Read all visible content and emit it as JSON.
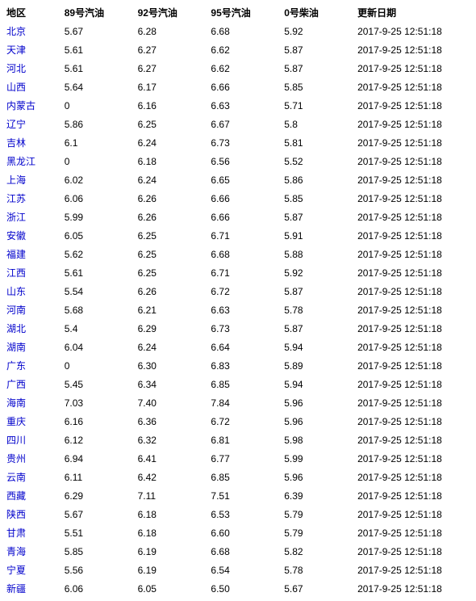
{
  "table": {
    "headers": {
      "region": "地区",
      "g89": "89号汽油",
      "g92": "92号汽油",
      "g95": "95号汽油",
      "d0": "0号柴油",
      "update": "更新日期"
    },
    "rows": [
      {
        "region": "北京",
        "g89": "5.67",
        "g92": "6.28",
        "g95": "6.68",
        "d0": "5.92",
        "update": "2017-9-25 12:51:18"
      },
      {
        "region": "天津",
        "g89": "5.61",
        "g92": "6.27",
        "g95": "6.62",
        "d0": "5.87",
        "update": "2017-9-25 12:51:18"
      },
      {
        "region": "河北",
        "g89": "5.61",
        "g92": "6.27",
        "g95": "6.62",
        "d0": "5.87",
        "update": "2017-9-25 12:51:18"
      },
      {
        "region": "山西",
        "g89": "5.64",
        "g92": "6.17",
        "g95": "6.66",
        "d0": "5.85",
        "update": "2017-9-25 12:51:18"
      },
      {
        "region": "内蒙古",
        "g89": "0",
        "g92": "6.16",
        "g95": "6.63",
        "d0": "5.71",
        "update": "2017-9-25 12:51:18"
      },
      {
        "region": "辽宁",
        "g89": "5.86",
        "g92": "6.25",
        "g95": "6.67",
        "d0": "5.8",
        "update": "2017-9-25 12:51:18"
      },
      {
        "region": "吉林",
        "g89": "6.1",
        "g92": "6.24",
        "g95": "6.73",
        "d0": "5.81",
        "update": "2017-9-25 12:51:18"
      },
      {
        "region": "黑龙江",
        "g89": "0",
        "g92": "6.18",
        "g95": "6.56",
        "d0": "5.52",
        "update": "2017-9-25 12:51:18"
      },
      {
        "region": "上海",
        "g89": "6.02",
        "g92": "6.24",
        "g95": "6.65",
        "d0": "5.86",
        "update": "2017-9-25 12:51:18"
      },
      {
        "region": "江苏",
        "g89": "6.06",
        "g92": "6.26",
        "g95": "6.66",
        "d0": "5.85",
        "update": "2017-9-25 12:51:18"
      },
      {
        "region": "浙江",
        "g89": "5.99",
        "g92": "6.26",
        "g95": "6.66",
        "d0": "5.87",
        "update": "2017-9-25 12:51:18"
      },
      {
        "region": "安徽",
        "g89": "6.05",
        "g92": "6.25",
        "g95": "6.71",
        "d0": "5.91",
        "update": "2017-9-25 12:51:18"
      },
      {
        "region": "福建",
        "g89": "5.62",
        "g92": "6.25",
        "g95": "6.68",
        "d0": "5.88",
        "update": "2017-9-25 12:51:18"
      },
      {
        "region": "江西",
        "g89": "5.61",
        "g92": "6.25",
        "g95": "6.71",
        "d0": "5.92",
        "update": "2017-9-25 12:51:18"
      },
      {
        "region": "山东",
        "g89": "5.54",
        "g92": "6.26",
        "g95": "6.72",
        "d0": "5.87",
        "update": "2017-9-25 12:51:18"
      },
      {
        "region": "河南",
        "g89": "5.68",
        "g92": "6.21",
        "g95": "6.63",
        "d0": "5.78",
        "update": "2017-9-25 12:51:18"
      },
      {
        "region": "湖北",
        "g89": "5.4",
        "g92": "6.29",
        "g95": "6.73",
        "d0": "5.87",
        "update": "2017-9-25 12:51:18"
      },
      {
        "region": "湖南",
        "g89": "6.04",
        "g92": "6.24",
        "g95": "6.64",
        "d0": "5.94",
        "update": "2017-9-25 12:51:18"
      },
      {
        "region": "广东",
        "g89": "0",
        "g92": "6.30",
        "g95": "6.83",
        "d0": "5.89",
        "update": "2017-9-25 12:51:18"
      },
      {
        "region": "广西",
        "g89": "5.45",
        "g92": "6.34",
        "g95": "6.85",
        "d0": "5.94",
        "update": "2017-9-25 12:51:18"
      },
      {
        "region": "海南",
        "g89": "7.03",
        "g92": "7.40",
        "g95": "7.84",
        "d0": "5.96",
        "update": "2017-9-25 12:51:18"
      },
      {
        "region": "重庆",
        "g89": "6.16",
        "g92": "6.36",
        "g95": "6.72",
        "d0": "5.96",
        "update": "2017-9-25 12:51:18"
      },
      {
        "region": "四川",
        "g89": "6.12",
        "g92": "6.32",
        "g95": "6.81",
        "d0": "5.98",
        "update": "2017-9-25 12:51:18"
      },
      {
        "region": "贵州",
        "g89": "6.94",
        "g92": "6.41",
        "g95": "6.77",
        "d0": "5.99",
        "update": "2017-9-25 12:51:18"
      },
      {
        "region": "云南",
        "g89": "6.11",
        "g92": "6.42",
        "g95": "6.85",
        "d0": "5.96",
        "update": "2017-9-25 12:51:18"
      },
      {
        "region": "西藏",
        "g89": "6.29",
        "g92": "7.11",
        "g95": "7.51",
        "d0": "6.39",
        "update": "2017-9-25 12:51:18"
      },
      {
        "region": "陕西",
        "g89": "5.67",
        "g92": "6.18",
        "g95": "6.53",
        "d0": "5.79",
        "update": "2017-9-25 12:51:18"
      },
      {
        "region": "甘肃",
        "g89": "5.51",
        "g92": "6.18",
        "g95": "6.60",
        "d0": "5.79",
        "update": "2017-9-25 12:51:18"
      },
      {
        "region": "青海",
        "g89": "5.85",
        "g92": "6.19",
        "g95": "6.68",
        "d0": "5.82",
        "update": "2017-9-25 12:51:18"
      },
      {
        "region": "宁夏",
        "g89": "5.56",
        "g92": "6.19",
        "g95": "6.54",
        "d0": "5.78",
        "update": "2017-9-25 12:51:18"
      },
      {
        "region": "新疆",
        "g89": "6.06",
        "g92": "6.05",
        "g95": "6.50",
        "d0": "5.67",
        "update": "2017-9-25 12:51:18"
      }
    ]
  },
  "colors": {
    "link": "#0000cc",
    "text": "#000000",
    "background": "#ffffff"
  }
}
